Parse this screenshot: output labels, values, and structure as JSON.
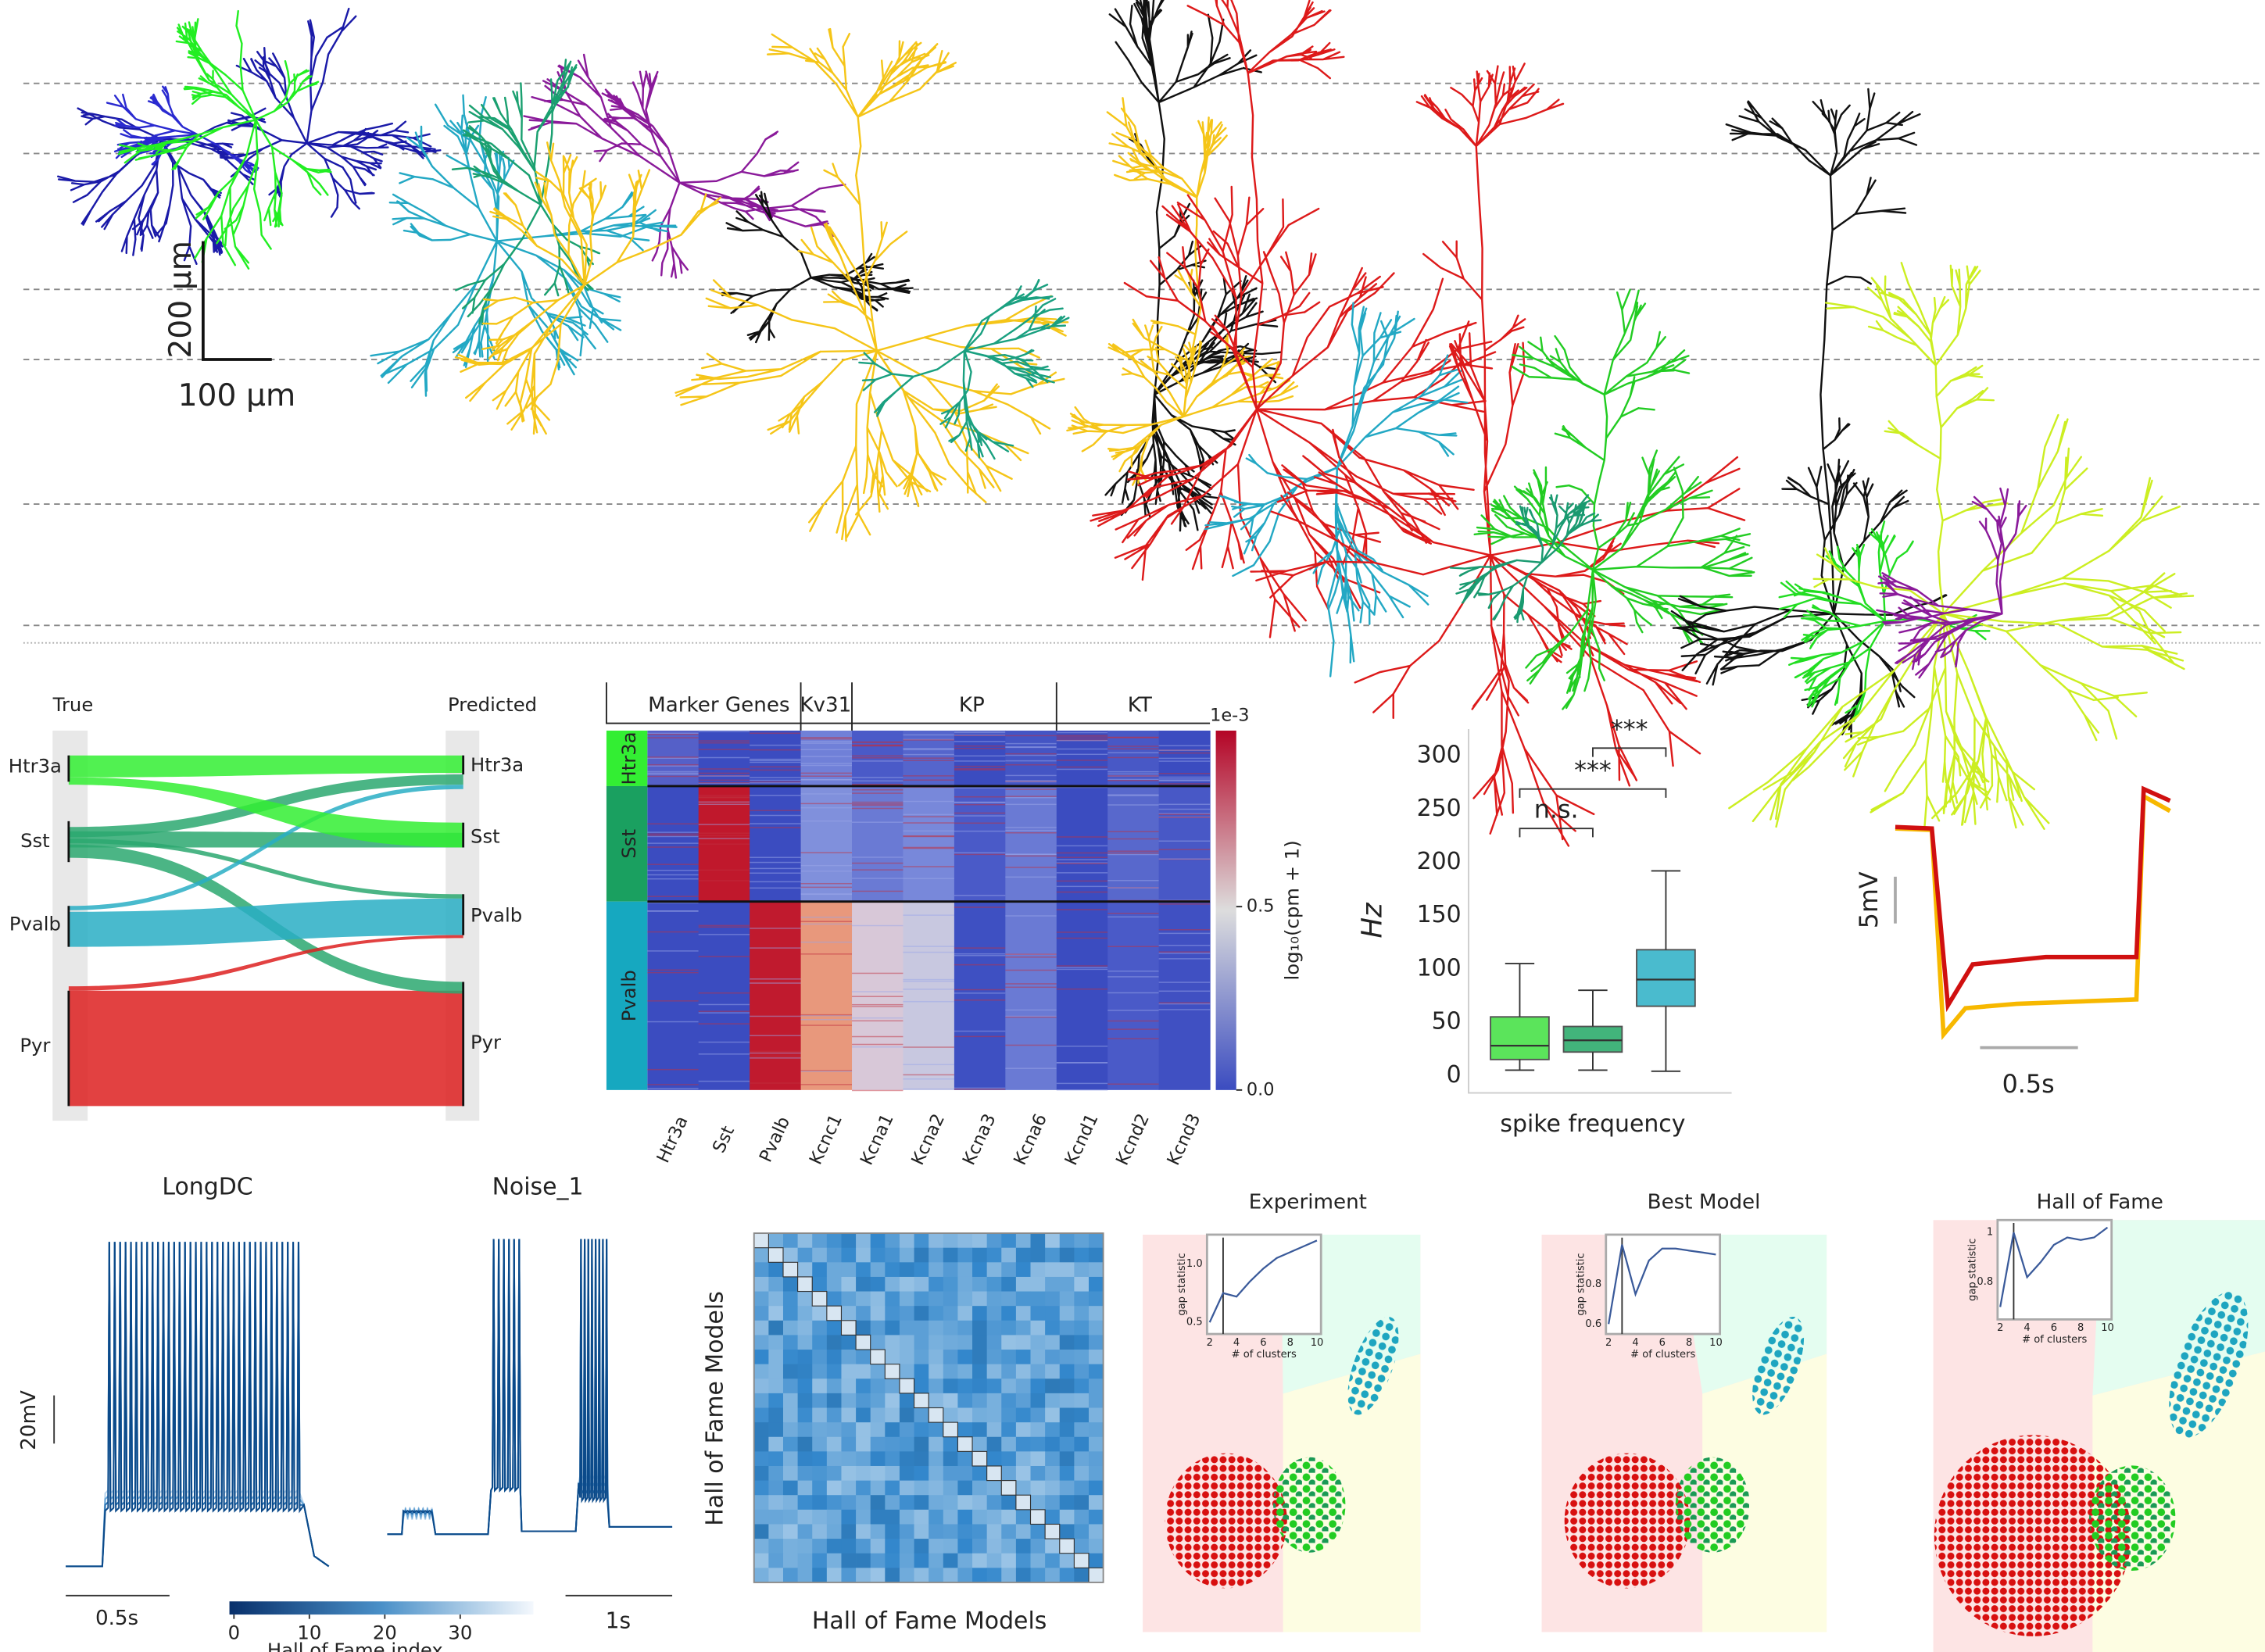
{
  "morphology": {
    "scale_vertical": "200 μm",
    "scale_horizontal": "100 μm"
  },
  "sankey": {
    "left_title": "True",
    "right_title": "Predicted",
    "left_labels": [
      "Htr3a",
      "Sst",
      "Pvalb",
      "Pyr"
    ],
    "right_labels": [
      "Htr3a",
      "Sst",
      "Pvalb",
      "Pyr"
    ]
  },
  "heatmap": {
    "gene_groups": [
      "Marker Genes",
      "Kv31",
      "KP",
      "KT"
    ],
    "row_groups": [
      "Htr3a",
      "Sst",
      "Pvalb"
    ],
    "genes": [
      "Htr3a",
      "Sst",
      "Pvalb",
      "Kcnc1",
      "Kcna1",
      "Kcna2",
      "Kcna3",
      "Kcna6",
      "Kcnd1",
      "Kcnd2",
      "Kcnd3"
    ],
    "colorbar": {
      "multiplier": "1e-3",
      "label": "log₁₀(cpm + 1)",
      "lim": [
        0,
        0.98
      ],
      "ticks": [
        {
          "value": 0,
          "label": "0.0"
        },
        {
          "value": 0.5,
          "label": "0.5"
        }
      ]
    }
  },
  "chart_data": {
    "type": "box",
    "xlabel": "spike frequency",
    "ylabel": "Hz",
    "ylim": [
      -15,
      325
    ],
    "yticks": [
      0,
      50,
      100,
      150,
      200,
      250,
      300
    ],
    "series": [
      {
        "color": "#3fe03f",
        "whisker_low": 5,
        "q1": 15,
        "median": 28,
        "q3": 55,
        "whisker_high": 105
      },
      {
        "color": "#22a865",
        "whisker_low": 5,
        "q1": 22,
        "median": 33,
        "q3": 46,
        "whisker_high": 80
      },
      {
        "color": "#2bb0c6",
        "whisker_low": 4,
        "q1": 65,
        "median": 90,
        "q3": 118,
        "whisker_high": 192
      }
    ],
    "annotations": [
      "n.s.",
      "***",
      "***"
    ]
  },
  "trace": {
    "scale_v": "5mV",
    "scale_t": "0.5s"
  },
  "responses": {
    "titles": [
      "LongDC",
      "Noise_1"
    ],
    "scale_v": "20mV",
    "scale_t": [
      "0.5s",
      "1s"
    ],
    "colorbar": {
      "label": "Hall of Fame index",
      "lim": [
        -0.6,
        39.7
      ],
      "ticks": [
        0,
        10,
        20,
        30
      ]
    }
  },
  "matrix": {
    "xlabel": "Hall of Fame Models",
    "ylabel": "Hall of Fame Models"
  },
  "clusters": [
    {
      "title": "Experiment",
      "inset": {
        "xlabel": "# of clusters",
        "ylabel": "gap statistic",
        "x": [
          2,
          3,
          4,
          5,
          6,
          7,
          8,
          9,
          10
        ],
        "values": [
          0.5,
          0.75,
          0.72,
          0.85,
          0.96,
          1.05,
          1.1,
          1.15,
          1.2
        ],
        "xlim": [
          1.8,
          10.3
        ],
        "ylim": [
          0.4,
          1.25
        ],
        "xticks": [
          2,
          4,
          6,
          8,
          10
        ],
        "yticks": [
          {
            "value": 0.5,
            "label": "0.5"
          },
          {
            "value": 1,
            "label": "1.0"
          }
        ],
        "vline": 3
      }
    },
    {
      "title": "Best Model",
      "inset": {
        "xlabel": "# of clusters",
        "ylabel": "gap statistic",
        "x": [
          2,
          3,
          4,
          5,
          6,
          7,
          8,
          9,
          10
        ],
        "values": [
          0.6,
          1.0,
          0.75,
          0.92,
          0.98,
          0.98,
          0.97,
          0.96,
          0.95
        ],
        "xlim": [
          1.8,
          10.3
        ],
        "ylim": [
          0.55,
          1.05
        ],
        "xticks": [
          2,
          4,
          6,
          8,
          10
        ],
        "yticks": [
          0.6,
          0.8
        ],
        "vline": 3
      }
    },
    {
      "title": "Hall of Fame",
      "inset": {
        "xlabel": "# of clusters",
        "ylabel": "gap statistic",
        "x": [
          2,
          3,
          4,
          5,
          6,
          7,
          8,
          9,
          10
        ],
        "values": [
          0.7,
          1.0,
          0.82,
          0.88,
          0.95,
          0.98,
          0.97,
          0.98,
          1.02
        ],
        "xlim": [
          1.8,
          10.3
        ],
        "ylim": [
          0.65,
          1.05
        ],
        "xticks": [
          2,
          4,
          6,
          8,
          10
        ],
        "yticks": [
          0.8,
          1
        ],
        "vline": 3
      }
    }
  ]
}
